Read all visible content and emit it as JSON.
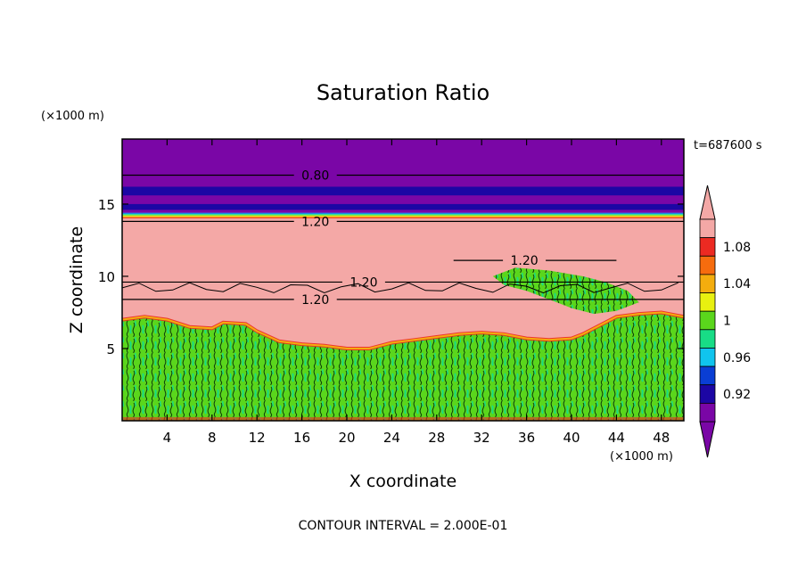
{
  "chart_data": {
    "type": "contour",
    "title": "Saturation Ratio",
    "xlabel": "X coordinate",
    "ylabel": "Z coordinate",
    "x_unit": "(×1000 m)",
    "y_unit": "(×1000 m)",
    "time_label": "t=687600 s",
    "contour_interval_text": "CONTOUR INTERVAL = 2.000E-01",
    "xlim": [
      0,
      50
    ],
    "ylim": [
      0,
      19.5
    ],
    "x_ticks": [
      {
        "v": 4,
        "label": "4"
      },
      {
        "v": 8,
        "label": "8"
      },
      {
        "v": 12,
        "label": "12"
      },
      {
        "v": 16,
        "label": "16"
      },
      {
        "v": 20,
        "label": "20"
      },
      {
        "v": 24,
        "label": "24"
      },
      {
        "v": 28,
        "label": "28"
      },
      {
        "v": 32,
        "label": "32"
      },
      {
        "v": 36,
        "label": "36"
      },
      {
        "v": 40,
        "label": "40"
      },
      {
        "v": 44,
        "label": "44"
      },
      {
        "v": 48,
        "label": "48"
      }
    ],
    "y_ticks": [
      {
        "v": 5,
        "label": "5"
      },
      {
        "v": 10,
        "label": "10"
      },
      {
        "v": 15,
        "label": "15"
      }
    ],
    "colorbar": {
      "levels": [
        {
          "label": "",
          "color": "#7a06a6"
        },
        {
          "label": "0.92",
          "color": "#1c06a4"
        },
        {
          "label": "",
          "color": "#0a3ed4"
        },
        {
          "label": "0.96",
          "color": "#10c4ee"
        },
        {
          "label": "",
          "color": "#18dc86"
        },
        {
          "label": "1",
          "color": "#5ad61c"
        },
        {
          "label": "",
          "color": "#e8f010"
        },
        {
          "label": "1.04",
          "color": "#f4ad0e"
        },
        {
          "label": "",
          "color": "#f66c0e"
        },
        {
          "label": "1.08",
          "color": "#ec2a22"
        },
        {
          "label": "",
          "color": "#f4a8a6"
        }
      ],
      "over_color": "#f4a8a6",
      "under_color": "#7a06a6"
    },
    "regions": [
      {
        "name": "upper-dry-layer",
        "z_range": [
          14.4,
          19.5
        ],
        "value": "< 0.92",
        "color": "#7a06a6"
      },
      {
        "name": "supersaturated-layer",
        "z_range": [
          6.5,
          14.0
        ],
        "value": "> 1.10",
        "color": "#f4a8a6"
      },
      {
        "name": "turbulent-boundary-layer",
        "z_range": [
          0,
          6.5
        ],
        "value": "0.98 - 1.02",
        "color": "#5ad61c"
      }
    ],
    "contour_lines": [
      {
        "level_label": "0.80",
        "z": 17.0
      },
      {
        "level_label": "1.20",
        "z": 13.8
      },
      {
        "level_label": "1.20",
        "z": 9.6
      },
      {
        "level_label": "1.20",
        "z": 8.4
      },
      {
        "level_label": "1.20",
        "z": 11.1
      }
    ]
  }
}
